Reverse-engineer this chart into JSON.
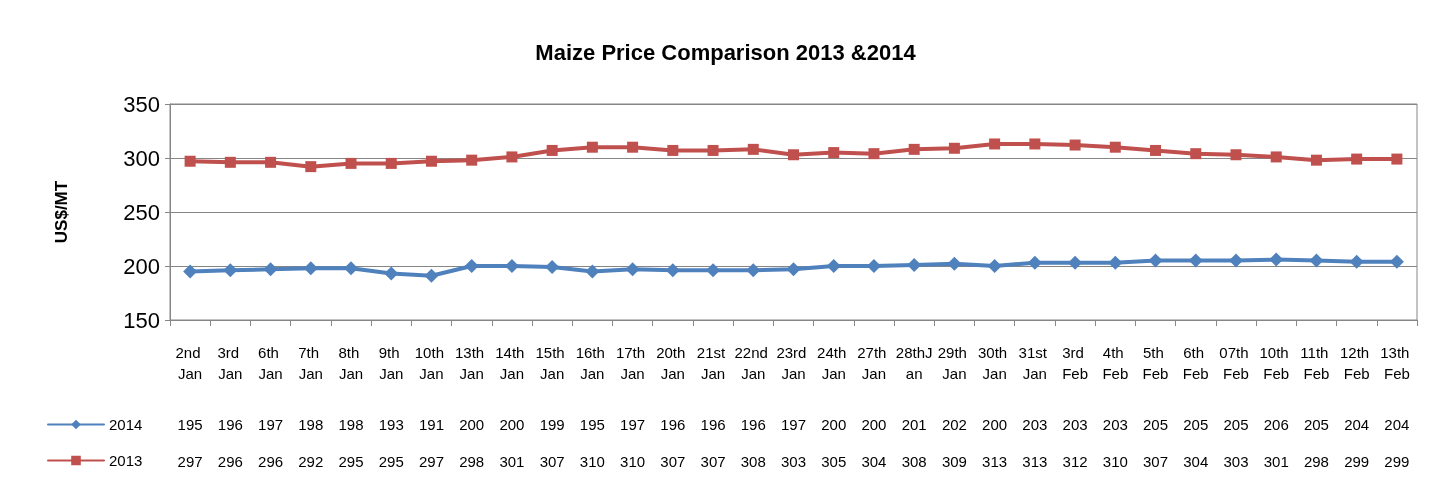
{
  "chart_data": {
    "type": "line",
    "title": "Maize Price Comparison 2013 &2014",
    "ylabel": "US$/MT",
    "categories": [
      "2nd Jan",
      "3rd Jan",
      "6th Jan",
      "7th Jan",
      "8th Jan",
      "9th Jan",
      "10th Jan",
      "13th Jan",
      "14th Jan",
      "15th Jan",
      "16th Jan",
      "17th Jan",
      "20th Jan",
      "21st Jan",
      "22nd Jan",
      "23rd Jan",
      "24th Jan",
      "27th Jan",
      "28thJan",
      "29th Jan",
      "30th Jan",
      "31st Jan",
      "3rd Feb",
      "4th Feb",
      "5th Feb",
      "6th Feb",
      "07th Feb",
      "10th Feb",
      "11th Feb",
      "12th Feb",
      "13th Feb"
    ],
    "series": [
      {
        "name": "2014",
        "color": "#4f81bd",
        "marker": "diamond",
        "values": [
          195,
          196,
          197,
          198,
          198,
          193,
          191,
          200,
          200,
          199,
          195,
          197,
          196,
          196,
          196,
          197,
          200,
          200,
          201,
          202,
          200,
          203,
          203,
          203,
          205,
          205,
          205,
          206,
          205,
          204,
          204
        ]
      },
      {
        "name": "2013",
        "color": "#c0504d",
        "marker": "square",
        "values": [
          297,
          296,
          296,
          292,
          295,
          295,
          297,
          298,
          301,
          307,
          310,
          310,
          307,
          307,
          308,
          303,
          305,
          304,
          308,
          309,
          313,
          313,
          312,
          310,
          307,
          304,
          303,
          301,
          298,
          299,
          299
        ]
      }
    ],
    "ylim": [
      150,
      350
    ],
    "yticks": [
      150,
      200,
      250,
      300,
      350
    ],
    "grid": "y",
    "legend": "bottom left",
    "data_labels": true,
    "line_style": "solid"
  }
}
